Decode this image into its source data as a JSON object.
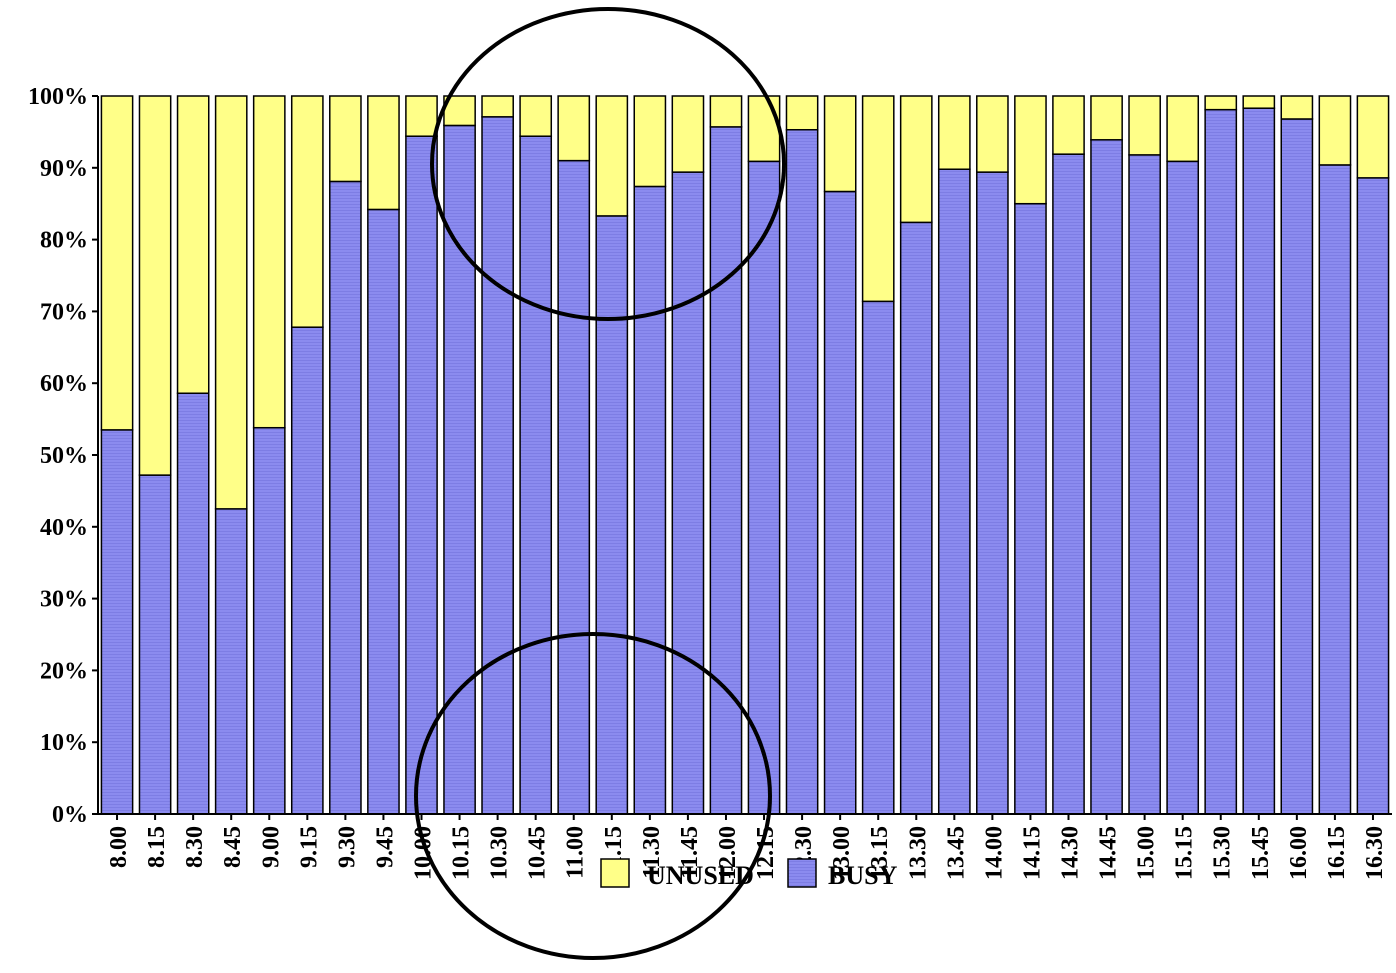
{
  "chart_data": {
    "type": "bar",
    "stacked": true,
    "percent_scale": true,
    "categories": [
      "8.00",
      "8.15",
      "8.30",
      "8.45",
      "9.00",
      "9.15",
      "9.30",
      "9.45",
      "10.00",
      "10.15",
      "10.30",
      "10.45",
      "11.00",
      "11.15",
      "11.30",
      "11.45",
      "12.00",
      "12.15",
      "12.30",
      "13.00",
      "13.15",
      "13.30",
      "13.45",
      "14.00",
      "14.15",
      "14.30",
      "14.45",
      "15.00",
      "15.15",
      "15.30",
      "15.45",
      "16.00",
      "16.15",
      "16.30"
    ],
    "series": [
      {
        "name": "BUSY",
        "color": "#8b8bef",
        "values": [
          53.5,
          47.2,
          58.6,
          42.5,
          53.8,
          67.8,
          88.1,
          84.2,
          94.4,
          95.9,
          97.1,
          94.4,
          91.0,
          83.3,
          87.4,
          89.4,
          95.7,
          90.9,
          95.3,
          86.7,
          71.4,
          82.4,
          89.8,
          89.4,
          85.0,
          91.9,
          93.9,
          91.8,
          90.9,
          98.1,
          98.3,
          96.8,
          90.4,
          88.6
        ]
      },
      {
        "name": "UNUSED",
        "color": "#ffff88",
        "values": [
          46.5,
          52.8,
          41.4,
          57.5,
          46.2,
          32.2,
          11.9,
          15.8,
          5.6,
          4.1,
          2.9,
          5.6,
          9.0,
          16.7,
          12.6,
          10.6,
          4.3,
          9.1,
          4.7,
          13.3,
          28.6,
          17.6,
          10.2,
          10.6,
          15.0,
          8.1,
          6.1,
          8.2,
          9.1,
          1.9,
          1.7,
          3.2,
          9.6,
          11.4
        ]
      }
    ],
    "ylim": [
      0,
      100
    ],
    "yticks": [
      "0%",
      "10%",
      "20%",
      "30%",
      "40%",
      "50%",
      "60%",
      "70%",
      "80%",
      "90%",
      "100%"
    ],
    "legend": {
      "placement": "bottom",
      "entries": [
        "UNUSED",
        "BUSY"
      ]
    },
    "annotations": [
      {
        "shape": "ellipse",
        "around": "upper portions of bars 10.15–12.15"
      },
      {
        "shape": "ellipse",
        "around": "lower portions of bars 10.15–12.15"
      }
    ],
    "grid": false,
    "xlabel": "",
    "ylabel": ""
  }
}
